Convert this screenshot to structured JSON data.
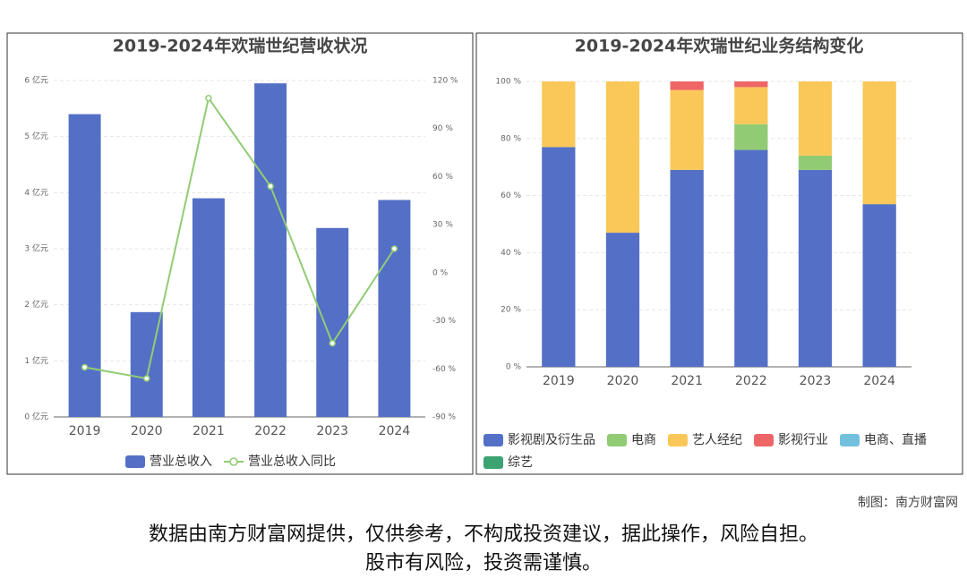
{
  "chart_data": [
    {
      "type": "bar",
      "title": "2019-2024年欢瑞世纪营收状况",
      "categories": [
        "2019",
        "2020",
        "2021",
        "2022",
        "2023",
        "2024"
      ],
      "series": [
        {
          "name": "营业总收入",
          "type": "bar",
          "color": "#5470c6",
          "values": [
            5.4,
            1.87,
            3.9,
            5.95,
            3.37,
            3.87
          ]
        },
        {
          "name": "营业总收入同比",
          "type": "line",
          "axis": "y2",
          "color": "#91cc75",
          "values": [
            -59,
            -66,
            109,
            54,
            -44,
            15
          ]
        }
      ],
      "ylim": [
        0,
        6
      ],
      "yticks": [
        {
          "value": 0,
          "label": "0 亿元"
        },
        {
          "value": 1,
          "label": "1 亿元"
        },
        {
          "value": 2,
          "label": "2 亿元"
        },
        {
          "value": 3,
          "label": "3 亿元"
        },
        {
          "value": 4,
          "label": "4 亿元"
        },
        {
          "value": 5,
          "label": "5 亿元"
        },
        {
          "value": 6,
          "label": "6 亿元"
        }
      ],
      "y2lim": [
        -90,
        120
      ],
      "y2ticks": [
        {
          "value": -90,
          "label": "-90 %"
        },
        {
          "value": -60,
          "label": "-60 %"
        },
        {
          "value": -30,
          "label": "-30 %"
        },
        {
          "value": 0,
          "label": "0 %"
        },
        {
          "value": 30,
          "label": "30 %"
        },
        {
          "value": 60,
          "label": "60 %"
        },
        {
          "value": 90,
          "label": "90 %"
        },
        {
          "value": 120,
          "label": "120 %"
        }
      ],
      "grid": true
    },
    {
      "type": "stacked_bar",
      "title": "2019-2024年欢瑞世纪业务结构变化",
      "categories": [
        "2019",
        "2020",
        "2021",
        "2022",
        "2023",
        "2024"
      ],
      "series": [
        {
          "name": "影视剧及衍生品",
          "color": "#5470c6",
          "values": [
            77,
            47,
            69,
            76,
            69,
            57
          ]
        },
        {
          "name": "电商",
          "color": "#91cc75",
          "values": [
            0,
            0,
            0,
            9,
            5,
            0
          ]
        },
        {
          "name": "艺人经纪",
          "color": "#fac858",
          "values": [
            23,
            53,
            28,
            13,
            26,
            43
          ]
        },
        {
          "name": "影视行业",
          "color": "#ee6666",
          "values": [
            0,
            0,
            3,
            2,
            0,
            0
          ]
        },
        {
          "name": "电商、直播",
          "color": "#73c0de",
          "values": [
            0,
            0,
            0,
            0,
            0,
            0
          ]
        },
        {
          "name": "综艺",
          "color": "#3ba272",
          "values": [
            0,
            0,
            0,
            0,
            0,
            0
          ]
        }
      ],
      "ylim": [
        0,
        100
      ],
      "yticks": [
        {
          "value": 0,
          "label": "0 %"
        },
        {
          "value": 20,
          "label": "20 %"
        },
        {
          "value": 40,
          "label": "40 %"
        },
        {
          "value": 60,
          "label": "60 %"
        },
        {
          "value": 80,
          "label": "80 %"
        },
        {
          "value": 100,
          "label": "100 %"
        }
      ],
      "grid": true
    }
  ],
  "footer": {
    "credit": "制图：南方财富网",
    "disclaimer": [
      "数据由南方财富网提供，仅供参考，不构成投资建议，据此操作，风险自担。",
      "股市有风险，投资需谨慎。"
    ]
  }
}
